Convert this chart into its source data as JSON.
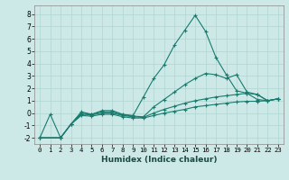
{
  "xlabel": "Humidex (Indice chaleur)",
  "bg_color": "#cce9e7",
  "grid_color": "#b0d5d2",
  "line_color": "#1a7a6e",
  "xlim": [
    -0.5,
    23.5
  ],
  "ylim": [
    -2.5,
    8.7
  ],
  "yticks": [
    -2,
    -1,
    0,
    1,
    2,
    3,
    4,
    5,
    6,
    7,
    8
  ],
  "xticks": [
    0,
    1,
    2,
    3,
    4,
    5,
    6,
    7,
    8,
    9,
    10,
    11,
    12,
    13,
    14,
    15,
    16,
    17,
    18,
    19,
    20,
    21,
    22,
    23
  ],
  "series": [
    {
      "x": [
        0,
        1,
        2,
        3,
        4,
        5,
        6,
        7,
        8,
        9,
        10,
        11,
        12,
        13,
        14,
        15,
        16,
        17,
        18,
        19,
        20,
        21,
        22,
        23
      ],
      "y": [
        -2.0,
        -0.1,
        -2.0,
        -0.9,
        0.1,
        -0.1,
        0.2,
        0.2,
        -0.1,
        -0.2,
        1.3,
        2.8,
        3.9,
        5.5,
        6.7,
        7.9,
        6.6,
        4.5,
        3.1,
        1.8,
        1.6,
        1.1,
        1.0,
        1.15
      ]
    },
    {
      "x": [
        0,
        2,
        3,
        4,
        5,
        6,
        7,
        8,
        9,
        10,
        11,
        12,
        13,
        14,
        15,
        16,
        17,
        18,
        19,
        20,
        21,
        22,
        23
      ],
      "y": [
        -2.0,
        -2.0,
        -0.9,
        0.0,
        -0.1,
        0.1,
        0.1,
        -0.15,
        -0.25,
        -0.3,
        0.5,
        1.1,
        1.7,
        2.3,
        2.8,
        3.2,
        3.1,
        2.8,
        3.1,
        1.7,
        1.5,
        1.0,
        1.15
      ]
    },
    {
      "x": [
        0,
        2,
        3,
        4,
        5,
        6,
        7,
        8,
        9,
        10,
        11,
        12,
        13,
        14,
        15,
        16,
        17,
        18,
        19,
        20,
        21,
        22,
        23
      ],
      "y": [
        -2.0,
        -2.0,
        -0.9,
        -0.1,
        -0.15,
        0.0,
        0.0,
        -0.2,
        -0.3,
        -0.35,
        0.0,
        0.3,
        0.55,
        0.8,
        1.0,
        1.15,
        1.3,
        1.4,
        1.5,
        1.6,
        1.5,
        1.0,
        1.15
      ]
    },
    {
      "x": [
        0,
        2,
        3,
        4,
        5,
        6,
        7,
        8,
        9,
        10,
        11,
        12,
        13,
        14,
        15,
        16,
        17,
        18,
        19,
        20,
        21,
        22,
        23
      ],
      "y": [
        -2.0,
        -2.0,
        -0.9,
        -0.2,
        -0.25,
        -0.1,
        -0.1,
        -0.3,
        -0.4,
        -0.4,
        -0.2,
        0.0,
        0.15,
        0.3,
        0.5,
        0.6,
        0.7,
        0.8,
        0.9,
        0.95,
        0.95,
        1.0,
        1.15
      ]
    }
  ]
}
